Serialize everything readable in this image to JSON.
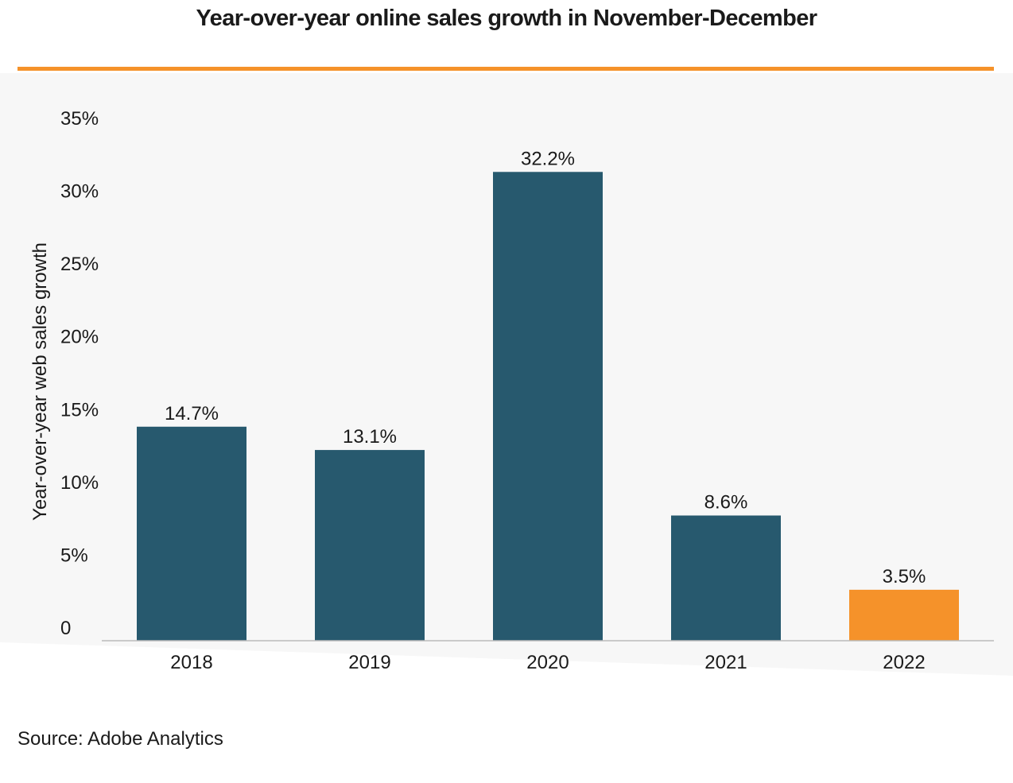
{
  "colors": {
    "bar": "#27596E",
    "highlight": "#F5922A",
    "rule": "#F5922A",
    "axis": "#BBBBBB",
    "text": "#1A1A1A",
    "plot_background": "#F7F7F7"
  },
  "chart_data": {
    "type": "bar",
    "title": "Year-over-year online sales growth in November-December",
    "xlabel": "",
    "ylabel": "Year-over-year web sales growth",
    "categories": [
      "2018",
      "2019",
      "2020",
      "2021",
      "2022"
    ],
    "values": [
      14.7,
      13.1,
      32.2,
      8.6,
      3.5
    ],
    "data_labels": [
      "14.7%",
      "13.1%",
      "32.2%",
      "8.6%",
      "3.5%"
    ],
    "highlight_index": 4,
    "ylim": [
      0,
      35
    ],
    "yticks": [
      0,
      5,
      10,
      15,
      20,
      25,
      30,
      35
    ],
    "ytick_labels": [
      "0",
      "5%",
      "10%",
      "15%",
      "20%",
      "25%",
      "30%",
      "35%"
    ],
    "grid": false,
    "legend": "none"
  },
  "source": "Source: Adobe Analytics"
}
